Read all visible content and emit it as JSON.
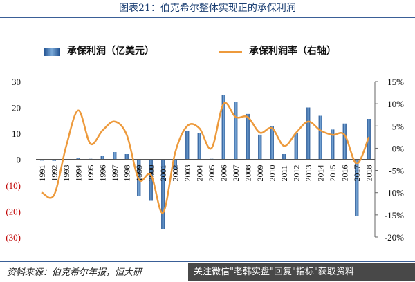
{
  "header": {
    "title": "图表21：伯克希尔整体实现正的承保利润"
  },
  "footer": {
    "source": "资料来源：伯克希尔年报，恒大研",
    "watermark": "关注微信\"老韩实盘\"回复\"指标\"获取资料"
  },
  "colors": {
    "bar": "#2f6bb0",
    "line": "#ed9a3c",
    "negative_tick": "#c00000"
  },
  "chart_data": {
    "type": "bar+line",
    "categories": [
      "1991",
      "1992",
      "1993",
      "1994",
      "1995",
      "1996",
      "1997",
      "1998",
      "1999",
      "2000",
      "2001",
      "2002",
      "2003",
      "2004",
      "2005",
      "2006",
      "2007",
      "2008",
      "2009",
      "2010",
      "2011",
      "2012",
      "2013",
      "2014",
      "2015",
      "2016",
      "2017",
      "2018"
    ],
    "series": [
      {
        "name": "承保利润（亿美元）",
        "type": "bar",
        "axis": "left",
        "values": [
          -0.5,
          -0.6,
          0.1,
          0.6,
          0.2,
          1.3,
          2.8,
          2.0,
          -14.0,
          -16.0,
          -27.0,
          -4.0,
          11.0,
          10.0,
          0.2,
          24.8,
          22.0,
          17.5,
          9.5,
          12.8,
          2.0,
          10.0,
          20.0,
          16.8,
          11.5,
          13.8,
          -22.0,
          15.6
        ]
      },
      {
        "name": "承保利润率（右轴）",
        "type": "line",
        "axis": "right",
        "values": [
          -10.0,
          -10.5,
          0.5,
          8.5,
          1.0,
          4.0,
          6.0,
          3.0,
          -7.0,
          -6.0,
          -14.5,
          -1.0,
          5.0,
          4.5,
          0.0,
          10.0,
          7.0,
          7.0,
          3.5,
          4.5,
          0.5,
          3.5,
          6.0,
          4.0,
          3.0,
          3.0,
          -3.5,
          2.5
        ]
      }
    ],
    "left_axis": {
      "ylim": [
        -30,
        30
      ],
      "ticks": [
        "30",
        "20",
        "10",
        "0",
        "(10)",
        "(20)",
        "(30)"
      ]
    },
    "right_axis": {
      "ylim": [
        -20,
        15
      ],
      "ticks": [
        "15%",
        "10%",
        "5%",
        "0%",
        "-5%",
        "-10%",
        "-15%",
        "-20%"
      ]
    },
    "legend_placement": "top",
    "grid": false
  }
}
